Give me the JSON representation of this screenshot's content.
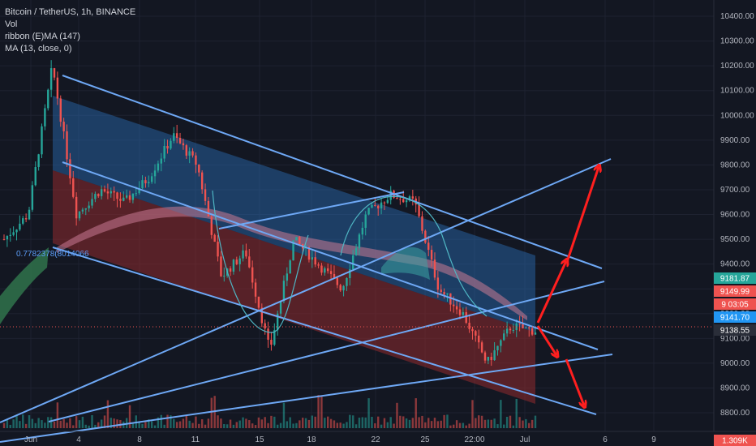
{
  "legend": {
    "symbol": "Bitcoin / TetherUS, 1h, BINANCE",
    "vol": "Vol",
    "ribbon": "ribbon (E)MA (147)",
    "ma": "MA (13, close, 0)"
  },
  "fib_label": "0.7782378(8014066",
  "colors": {
    "background": "#131722",
    "up": "#26a69a",
    "down": "#ef5350",
    "channel_line": "#6ea8f5",
    "blue_zone": "#2a6fb8",
    "red_zone": "#8f2a2e",
    "arrow": "#ff1f1f"
  },
  "chart_data": {
    "type": "candlestick",
    "title": "Bitcoin / TetherUS, 1h, BINANCE",
    "x_ticks": [
      "Jun",
      "4",
      "8",
      "11",
      "15",
      "18",
      "22",
      "25",
      "22:00",
      "Jul",
      "6",
      "9"
    ],
    "y_ticks": [
      10400,
      10300,
      10200,
      10100,
      10000,
      9900,
      9800,
      9700,
      9600,
      9500,
      9400,
      9300,
      9200,
      9100,
      9000,
      8900,
      8800
    ],
    "ylim": [
      8780,
      10460
    ],
    "price_path": [
      {
        "t": "Jun 1",
        "y": 9500
      },
      {
        "t": "Jun 2",
        "y": 9600
      },
      {
        "t": "Jun 2 12:00",
        "y": 10200
      },
      {
        "t": "Jun 3",
        "y": 9600
      },
      {
        "t": "Jun 5",
        "y": 9700
      },
      {
        "t": "Jun 7",
        "y": 9650
      },
      {
        "t": "Jun 9",
        "y": 9750
      },
      {
        "t": "Jun 10",
        "y": 9920
      },
      {
        "t": "Jun 11",
        "y": 9800
      },
      {
        "t": "Jun 12",
        "y": 9350
      },
      {
        "t": "Jun 13",
        "y": 9450
      },
      {
        "t": "Jun 15",
        "y": 9050
      },
      {
        "t": "Jun 17",
        "y": 9500
      },
      {
        "t": "Jun 19",
        "y": 9400
      },
      {
        "t": "Jun 21",
        "y": 9300
      },
      {
        "t": "Jun 22",
        "y": 9600
      },
      {
        "t": "Jun 23",
        "y": 9680
      },
      {
        "t": "Jun 24",
        "y": 9650
      },
      {
        "t": "Jun 25",
        "y": 9300
      },
      {
        "t": "Jun 26",
        "y": 9200
      },
      {
        "t": "Jun 27",
        "y": 9000
      },
      {
        "t": "Jun 28",
        "y": 9150
      },
      {
        "t": "Jun 30",
        "y": 9130
      }
    ],
    "price_badges": [
      {
        "label": "9181.87",
        "value": 9181.87,
        "color": "#26a69a"
      },
      {
        "label": "9149.99",
        "value": 9149.99,
        "color": "#ef5350"
      },
      {
        "label": "9 03:05",
        "value": 9130,
        "color": "#ef5350"
      },
      {
        "label": "9141.70",
        "value": 9100,
        "color": "#2196f3"
      },
      {
        "label": "9138.55",
        "value": 9070,
        "color": "#2a2e39"
      },
      {
        "label": "1.309K",
        "value": 8790,
        "color": "#ef5350"
      }
    ]
  }
}
